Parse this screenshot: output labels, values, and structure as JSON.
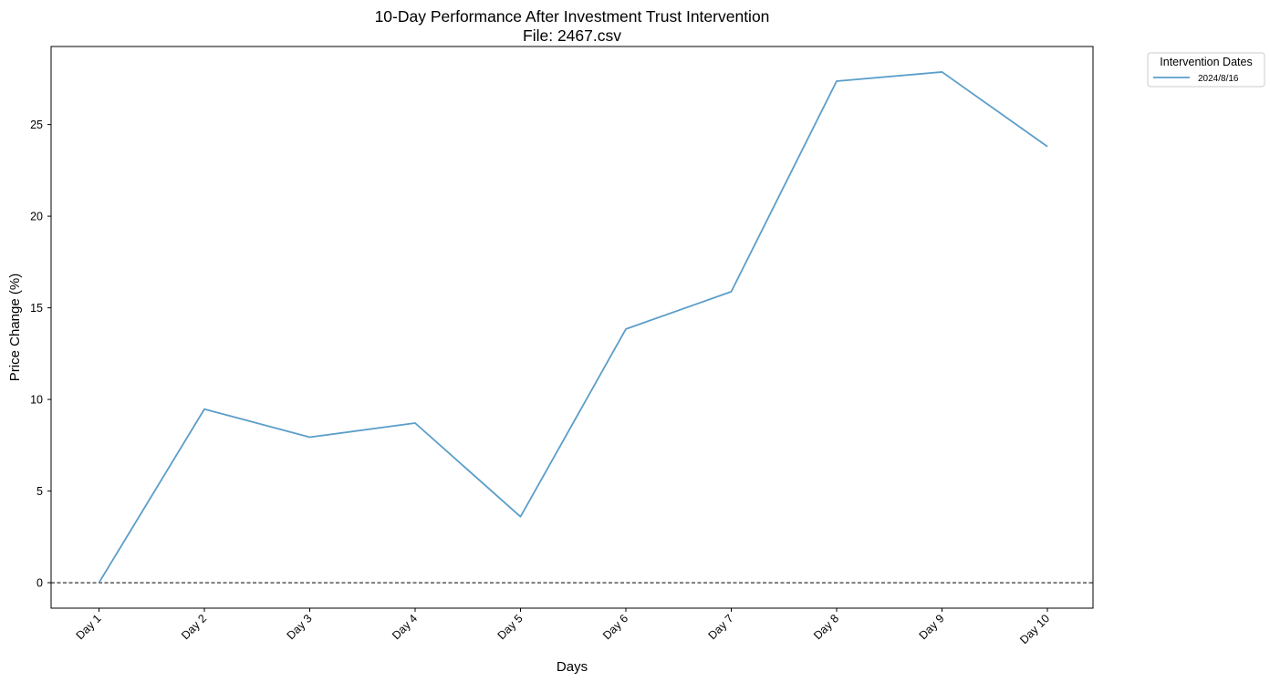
{
  "chart_data": {
    "type": "line",
    "title": "10-Day Performance After Investment Trust Intervention",
    "subtitle": "File: 2467.csv",
    "xlabel": "Days",
    "ylabel": "Price Change (%)",
    "categories": [
      "Day 1",
      "Day 2",
      "Day 3",
      "Day 4",
      "Day 5",
      "Day 6",
      "Day 7",
      "Day 8",
      "Day 9",
      "Day 10"
    ],
    "series": [
      {
        "name": "2024/8/16",
        "color": "#5b9ec9",
        "values": [
          0.0,
          9.47,
          7.94,
          8.71,
          3.6,
          13.84,
          15.88,
          27.37,
          27.87,
          23.8
        ]
      }
    ],
    "ylim": [
      -1.39,
      29.26
    ],
    "yticks": [
      0,
      5,
      10,
      15,
      20,
      25
    ],
    "reference_line": {
      "y": 0,
      "style": "dashed",
      "color": "#000000"
    },
    "grid": false,
    "legend": {
      "title": "Intervention Dates",
      "placement": "outside-top-right"
    }
  }
}
